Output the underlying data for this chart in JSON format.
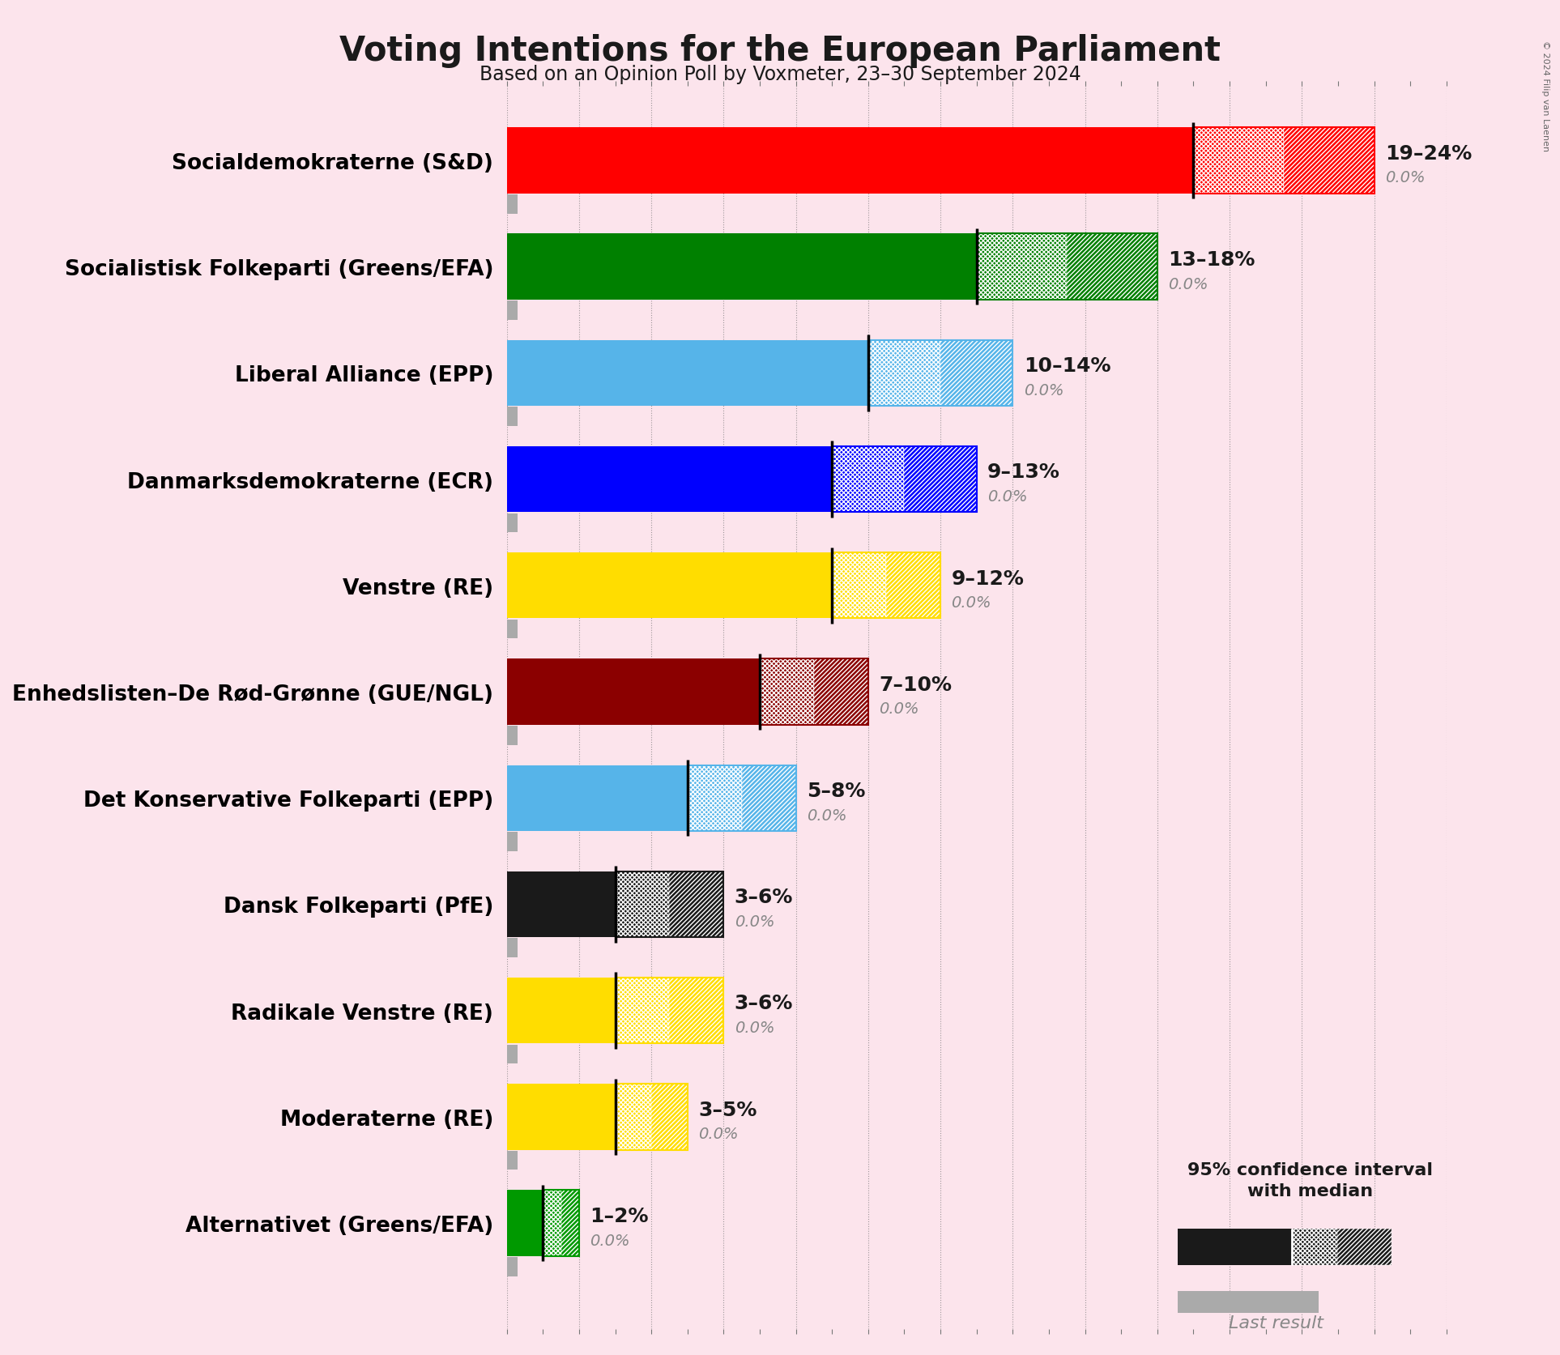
{
  "title": "Voting Intentions for the European Parliament",
  "subtitle": "Based on an Opinion Poll by Voxmeter, 23–30 September 2024",
  "copyright": "© 2024 Filip van Laenen",
  "background_color": "#fce4ec",
  "parties": [
    {
      "name": "Socialdemokraterne (S&D)",
      "ci_low": 19,
      "ci_high": 24,
      "last": 0.0,
      "color": "#ff0000",
      "label": "19–24%"
    },
    {
      "name": "Socialistisk Folkeparti (Greens/EFA)",
      "ci_low": 13,
      "ci_high": 18,
      "last": 0.0,
      "color": "#008000",
      "label": "13–18%"
    },
    {
      "name": "Liberal Alliance (EPP)",
      "ci_low": 10,
      "ci_high": 14,
      "last": 0.0,
      "color": "#56b4e9",
      "label": "10–14%"
    },
    {
      "name": "Danmarksdemokraterne (ECR)",
      "ci_low": 9,
      "ci_high": 13,
      "last": 0.0,
      "color": "#0000ff",
      "label": "9–13%"
    },
    {
      "name": "Venstre (RE)",
      "ci_low": 9,
      "ci_high": 12,
      "last": 0.0,
      "color": "#ffdd00",
      "label": "9–12%"
    },
    {
      "name": "Enhedslisten–De Rød-Grønne (GUE/NGL)",
      "ci_low": 7,
      "ci_high": 10,
      "last": 0.0,
      "color": "#8b0000",
      "label": "7–10%"
    },
    {
      "name": "Det Konservative Folkeparti (EPP)",
      "ci_low": 5,
      "ci_high": 8,
      "last": 0.0,
      "color": "#56b4e9",
      "label": "5–8%"
    },
    {
      "name": "Dansk Folkeparti (PfE)",
      "ci_low": 3,
      "ci_high": 6,
      "last": 0.0,
      "color": "#1a1a1a",
      "label": "3–6%"
    },
    {
      "name": "Radikale Venstre (RE)",
      "ci_low": 3,
      "ci_high": 6,
      "last": 0.0,
      "color": "#ffdd00",
      "label": "3–6%"
    },
    {
      "name": "Moderaterne (RE)",
      "ci_low": 3,
      "ci_high": 5,
      "last": 0.0,
      "color": "#ffdd00",
      "label": "3–5%"
    },
    {
      "name": "Alternativet (Greens/EFA)",
      "ci_low": 1,
      "ci_high": 2,
      "last": 0.0,
      "color": "#009900",
      "label": "1–2%"
    }
  ],
  "xlim": [
    0,
    26
  ],
  "tick_interval": 2,
  "bar_height": 0.62,
  "last_bar_height": 0.18,
  "label_fontsize": 18,
  "title_fontsize": 30,
  "subtitle_fontsize": 17,
  "party_fontsize": 19,
  "annot_fontsize": 14,
  "legend_label_fontsize": 16
}
